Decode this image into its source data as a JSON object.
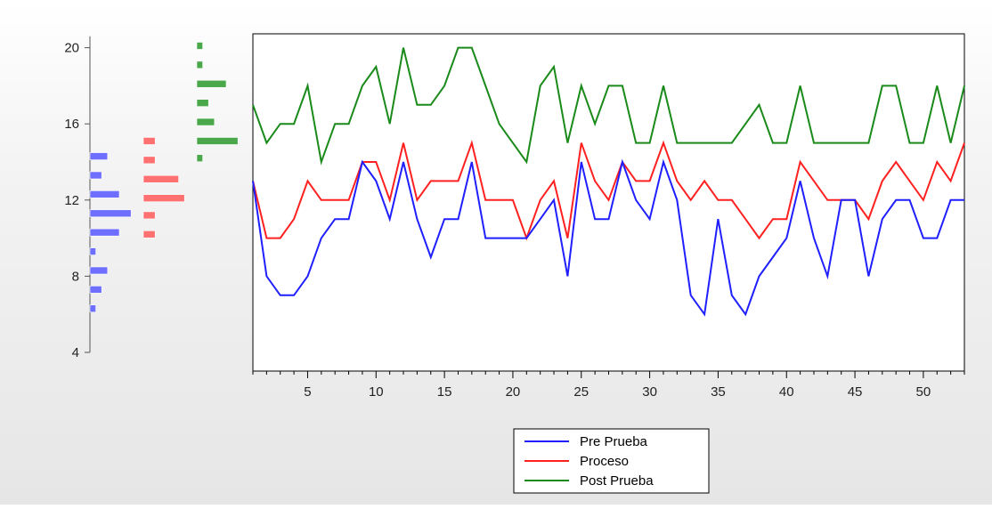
{
  "chart_data": {
    "type": "line",
    "title": "",
    "xlabel": "",
    "ylabel": "",
    "ylim": [
      4,
      21
    ],
    "xlim": [
      1,
      53
    ],
    "x_ticks": [
      5,
      10,
      15,
      20,
      25,
      30,
      35,
      40,
      45,
      50
    ],
    "y_ticks": [
      4,
      8,
      12,
      16,
      20
    ],
    "x": [
      1,
      2,
      3,
      4,
      5,
      6,
      7,
      8,
      9,
      10,
      11,
      12,
      13,
      14,
      15,
      16,
      17,
      18,
      19,
      20,
      21,
      22,
      23,
      24,
      25,
      26,
      27,
      28,
      29,
      30,
      31,
      32,
      33,
      34,
      35,
      36,
      37,
      38,
      39,
      40,
      41,
      42,
      43,
      44,
      45,
      46,
      47,
      48,
      49,
      50,
      51,
      52,
      53
    ],
    "series": [
      {
        "name": "Pre Prueba",
        "color": "#1f1fff",
        "values": [
          13,
          8,
          7,
          7,
          8,
          10,
          11,
          11,
          14,
          13,
          11,
          14,
          11,
          9,
          11,
          11,
          14,
          10,
          10,
          10,
          10,
          11,
          12,
          8,
          14,
          11,
          11,
          14,
          12,
          11,
          14,
          12,
          7,
          6,
          11,
          7,
          6,
          8,
          9,
          10,
          13,
          10,
          8,
          12,
          12,
          8,
          11,
          12,
          12,
          10,
          10,
          12,
          12
        ]
      },
      {
        "name": "Proceso",
        "color": "#ff2020",
        "values": [
          13,
          10,
          10,
          11,
          13,
          12,
          12,
          12,
          14,
          14,
          12,
          15,
          12,
          13,
          13,
          13,
          15,
          12,
          12,
          12,
          10,
          12,
          13,
          10,
          15,
          13,
          12,
          14,
          13,
          13,
          15,
          13,
          12,
          13,
          12,
          12,
          11,
          10,
          11,
          11,
          14,
          13,
          12,
          12,
          12,
          11,
          13,
          14,
          13,
          12,
          14,
          13,
          15
        ]
      },
      {
        "name": "Post Prueba",
        "color": "#1a8a1a",
        "values": [
          17,
          15,
          16,
          16,
          18,
          14,
          16,
          16,
          18,
          19,
          16,
          20,
          17,
          17,
          18,
          20,
          20,
          18,
          16,
          15,
          14,
          18,
          19,
          15,
          18,
          16,
          18,
          18,
          15,
          15,
          18,
          15,
          15,
          15,
          15,
          15,
          16,
          17,
          15,
          15,
          18,
          15,
          15,
          15,
          15,
          15,
          18,
          18,
          15,
          15,
          18,
          15,
          18
        ]
      }
    ],
    "histograms": [
      {
        "series": "Pre Prueba",
        "color": "#6f6fff",
        "bins": [
          {
            "value": 6.3,
            "count": 1
          },
          {
            "value": 7.3,
            "count": 2
          },
          {
            "value": 8.3,
            "count": 3
          },
          {
            "value": 9.3,
            "count": 1
          },
          {
            "value": 10.3,
            "count": 5
          },
          {
            "value": 11.3,
            "count": 7
          },
          {
            "value": 12.3,
            "count": 5
          },
          {
            "value": 13.3,
            "count": 2
          },
          {
            "value": 14.3,
            "count": 3
          }
        ]
      },
      {
        "series": "Proceso",
        "color": "#ff7070",
        "bins": [
          {
            "value": 10.2,
            "count": 2
          },
          {
            "value": 11.2,
            "count": 2
          },
          {
            "value": 12.1,
            "count": 7
          },
          {
            "value": 13.1,
            "count": 6
          },
          {
            "value": 14.1,
            "count": 2
          },
          {
            "value": 15.1,
            "count": 2
          }
        ]
      },
      {
        "series": "Post Prueba",
        "color": "#4aa84a",
        "bins": [
          {
            "value": 14.2,
            "count": 1
          },
          {
            "value": 15.1,
            "count": 7
          },
          {
            "value": 16.1,
            "count": 3
          },
          {
            "value": 17.1,
            "count": 2
          },
          {
            "value": 18.1,
            "count": 5
          },
          {
            "value": 19.1,
            "count": 1
          },
          {
            "value": 20.1,
            "count": 1
          }
        ]
      }
    ],
    "legend": {
      "position": "bottom-center",
      "entries": [
        "Pre Prueba",
        "Proceso",
        "Post Prueba"
      ]
    },
    "grid": false
  }
}
